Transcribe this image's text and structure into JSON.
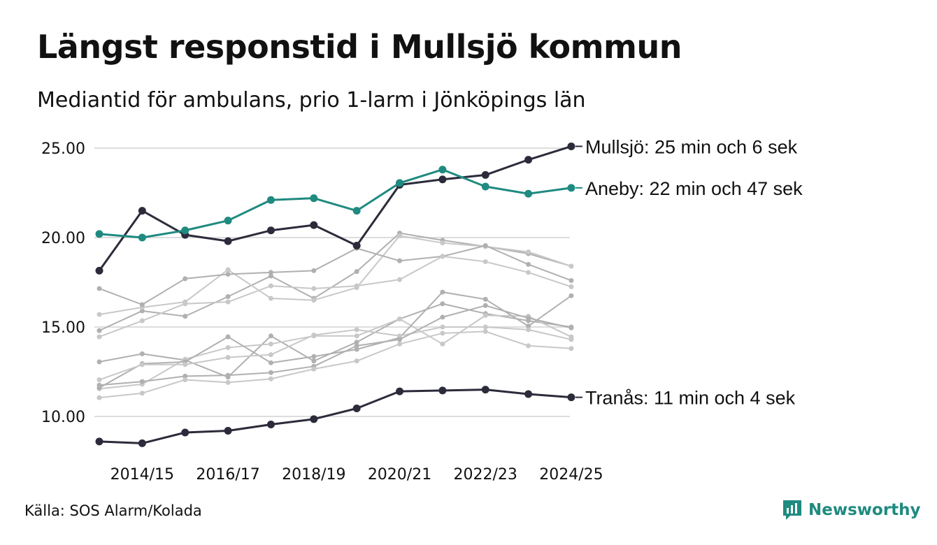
{
  "header": {
    "title": "Längst responstid i Mullsjö kommun",
    "subtitle": "Mediantid för ambulans, prio 1-larm i Jönköpings län"
  },
  "footer": {
    "source": "Källa: SOS Alarm/Kolada",
    "brand": "Newsworthy",
    "brand_icon": "bar-chart-badge-icon"
  },
  "colors": {
    "highlight_dark": "#2b2b3b",
    "highlight_teal": "#1f8a80",
    "background_lines": [
      "#b0b0b0",
      "#c8c8c8"
    ],
    "grid": "#dddddd",
    "brand": "#1f8a80"
  },
  "chart_data": {
    "type": "line",
    "title": "Längst responstid i Mullsjö kommun",
    "subtitle": "Mediantid för ambulans, prio 1-larm i Jönköpings län",
    "x": [
      "2013/14",
      "2014/15",
      "2015/16",
      "2016/17",
      "2017/18",
      "2018/19",
      "2019/20",
      "2020/21",
      "2021/22",
      "2022/23",
      "2023/24",
      "2024/25"
    ],
    "x_tick_labels": [
      "2014/15",
      "2016/17",
      "2018/19",
      "2020/21",
      "2022/23",
      "2024/25"
    ],
    "y_tick_labels": [
      "10.00",
      "15.00",
      "20.00",
      "25.00"
    ],
    "ylim": [
      7.5,
      26
    ],
    "grid": true,
    "highlight_series": [
      {
        "name": "Mullsjö",
        "label": "Mullsjö: 25 min och 6 sek",
        "color": "#2b2b3b",
        "values": [
          18.15,
          21.5,
          20.15,
          19.8,
          20.4,
          20.7,
          19.55,
          22.95,
          23.25,
          23.5,
          24.35,
          25.1
        ]
      },
      {
        "name": "Aneby",
        "label": "Aneby: 22 min och 47 sek",
        "color": "#1f8a80",
        "values": [
          20.2,
          20.0,
          20.4,
          20.95,
          22.1,
          22.2,
          21.5,
          23.05,
          23.8,
          22.85,
          22.45,
          22.78
        ]
      },
      {
        "name": "Tranås",
        "label": "Tranås: 11 min och 4 sek",
        "color": "#2b2b3b",
        "values": [
          8.6,
          8.5,
          9.1,
          9.2,
          9.55,
          9.85,
          10.45,
          11.4,
          11.45,
          11.5,
          11.25,
          11.07
        ]
      }
    ],
    "background_series": [
      {
        "values": [
          14.8,
          15.9,
          15.6,
          16.7,
          17.85,
          16.6,
          18.1,
          20.25,
          19.85,
          19.5,
          19.1,
          18.4
        ]
      },
      {
        "values": [
          15.7,
          16.1,
          16.4,
          18.2,
          16.6,
          16.5,
          17.2,
          20.1,
          19.7,
          19.5,
          19.2,
          18.4
        ]
      },
      {
        "values": [
          17.15,
          16.25,
          17.7,
          17.95,
          18.05,
          18.15,
          19.4,
          18.7,
          18.95,
          19.55,
          18.5,
          17.6
        ]
      },
      {
        "values": [
          14.45,
          15.35,
          16.3,
          16.4,
          17.3,
          17.15,
          17.3,
          17.65,
          18.95,
          18.65,
          18.05,
          17.25
        ]
      },
      {
        "values": [
          13.05,
          13.5,
          13.15,
          12.2,
          14.5,
          13.1,
          14.15,
          15.45,
          16.3,
          15.75,
          15.35,
          15.0
        ]
      },
      {
        "values": [
          11.55,
          11.8,
          13.2,
          13.85,
          14.05,
          14.5,
          14.5,
          15.45,
          14.05,
          15.65,
          15.6,
          14.45
        ]
      },
      {
        "values": [
          11.6,
          12.95,
          13.05,
          14.45,
          13.0,
          13.35,
          13.75,
          14.4,
          16.95,
          16.55,
          15.05,
          16.75
        ]
      },
      {
        "values": [
          12.05,
          12.9,
          12.9,
          13.3,
          13.45,
          14.55,
          14.85,
          14.5,
          15.0,
          15.0,
          14.85,
          14.3
        ]
      },
      {
        "values": [
          11.75,
          11.95,
          12.25,
          12.3,
          12.45,
          12.8,
          13.95,
          14.3,
          15.55,
          16.2,
          15.5,
          14.95
        ]
      },
      {
        "values": [
          11.05,
          11.3,
          12.05,
          11.9,
          12.1,
          12.65,
          13.1,
          14.05,
          14.65,
          14.75,
          13.95,
          13.8
        ]
      }
    ]
  }
}
